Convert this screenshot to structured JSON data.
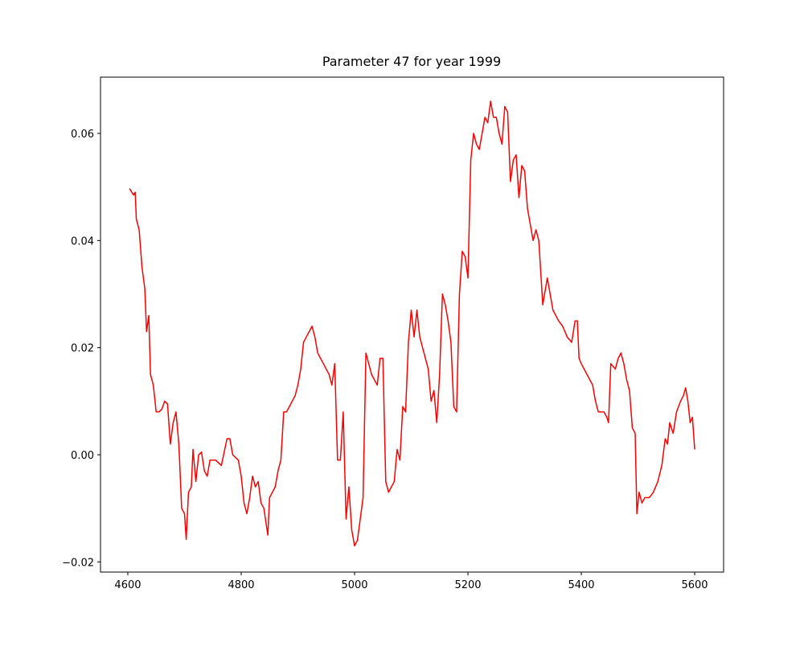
{
  "chart_data": {
    "type": "line",
    "title": "Parameter 47 for year 1999",
    "x": [
      4603,
      4610,
      4613,
      4615,
      4620,
      4625,
      4630,
      4633,
      4637,
      4640,
      4645,
      4650,
      4655,
      4660,
      4665,
      4670,
      4675,
      4680,
      4685,
      4690,
      4695,
      4700,
      4703,
      4707,
      4712,
      4715,
      4720,
      4725,
      4730,
      4735,
      4740,
      4745,
      4755,
      4765,
      4775,
      4780,
      4785,
      4795,
      4800,
      4805,
      4810,
      4815,
      4820,
      4825,
      4830,
      4835,
      4840,
      4847,
      4850,
      4855,
      4860,
      4865,
      4870,
      4875,
      4880,
      4885,
      4890,
      4895,
      4900,
      4905,
      4910,
      4915,
      4920,
      4925,
      4930,
      4935,
      4940,
      4945,
      4950,
      4955,
      4960,
      4965,
      4970,
      4975,
      4980,
      4985,
      4990,
      4995,
      5000,
      5005,
      5010,
      5015,
      5020,
      5025,
      5030,
      5035,
      5040,
      5045,
      5050,
      5055,
      5060,
      5065,
      5070,
      5075,
      5080,
      5085,
      5090,
      5095,
      5100,
      5105,
      5110,
      5115,
      5120,
      5125,
      5130,
      5135,
      5140,
      5145,
      5150,
      5155,
      5160,
      5165,
      5170,
      5175,
      5180,
      5185,
      5190,
      5195,
      5200,
      5205,
      5210,
      5215,
      5220,
      5225,
      5230,
      5235,
      5240,
      5245,
      5250,
      5255,
      5260,
      5265,
      5270,
      5275,
      5280,
      5285,
      5290,
      5295,
      5300,
      5305,
      5310,
      5315,
      5320,
      5325,
      5332,
      5340,
      5350,
      5360,
      5367,
      5375,
      5383,
      5389,
      5393,
      5396,
      5400,
      5410,
      5420,
      5425,
      5430,
      5440,
      5445,
      5448,
      5452,
      5460,
      5465,
      5470,
      5475,
      5480,
      5485,
      5490,
      5495,
      5498,
      5502,
      5507,
      5512,
      5520,
      5527,
      5535,
      5542,
      5548,
      5552,
      5556,
      5562,
      5568,
      5575,
      5580,
      5584,
      5588,
      5592,
      5596,
      5600
    ],
    "series": [
      {
        "color": "#ff0000",
        "values": [
          0.0497,
          0.0485,
          0.049,
          0.044,
          0.042,
          0.035,
          0.031,
          0.023,
          0.026,
          0.015,
          0.013,
          0.008,
          0.008,
          0.0085,
          0.01,
          0.0095,
          0.002,
          0.006,
          0.008,
          0.002,
          -0.01,
          -0.011,
          -0.0158,
          -0.007,
          -0.006,
          0.001,
          -0.005,
          0.0,
          0.0005,
          -0.003,
          -0.004,
          -0.001,
          -0.001,
          -0.002,
          0.003,
          0.003,
          0.0,
          -0.001,
          -0.004,
          -0.009,
          -0.011,
          -0.008,
          -0.004,
          -0.006,
          -0.005,
          -0.009,
          -0.01,
          -0.015,
          -0.008,
          -0.007,
          -0.006,
          -0.003,
          -0.001,
          0.008,
          0.008,
          0.009,
          0.01,
          0.011,
          0.013,
          0.016,
          0.021,
          0.022,
          0.023,
          0.024,
          0.022,
          0.019,
          0.018,
          0.017,
          0.016,
          0.015,
          0.013,
          0.017,
          -0.001,
          -0.001,
          0.008,
          -0.012,
          -0.006,
          -0.014,
          -0.017,
          -0.016,
          -0.012,
          -0.008,
          0.019,
          0.017,
          0.015,
          0.014,
          0.013,
          0.018,
          0.018,
          -0.005,
          -0.007,
          -0.006,
          -0.005,
          0.001,
          -0.001,
          0.009,
          0.008,
          0.021,
          0.027,
          0.022,
          0.027,
          0.022,
          0.02,
          0.018,
          0.016,
          0.01,
          0.012,
          0.006,
          0.015,
          0.03,
          0.028,
          0.025,
          0.021,
          0.009,
          0.008,
          0.03,
          0.038,
          0.037,
          0.033,
          0.055,
          0.06,
          0.058,
          0.057,
          0.06,
          0.063,
          0.062,
          0.066,
          0.063,
          0.063,
          0.06,
          0.058,
          0.065,
          0.064,
          0.051,
          0.055,
          0.056,
          0.048,
          0.054,
          0.053,
          0.046,
          0.043,
          0.04,
          0.042,
          0.04,
          0.028,
          0.033,
          0.027,
          0.025,
          0.024,
          0.022,
          0.021,
          0.025,
          0.025,
          0.018,
          0.017,
          0.015,
          0.013,
          0.01,
          0.008,
          0.008,
          0.007,
          0.006,
          0.017,
          0.016,
          0.018,
          0.019,
          0.017,
          0.014,
          0.012,
          0.005,
          0.004,
          -0.011,
          -0.007,
          -0.009,
          -0.008,
          -0.008,
          -0.007,
          -0.005,
          -0.002,
          0.003,
          0.002,
          0.006,
          0.004,
          0.008,
          0.01,
          0.011,
          0.0125,
          0.01,
          0.006,
          0.007,
          0.001
        ]
      }
    ],
    "xlim": [
      4551.8,
      5651
    ],
    "ylim": [
      -0.0219,
      0.0705
    ],
    "xticks": [
      4600,
      4800,
      5000,
      5200,
      5400,
      5600
    ],
    "yticks": [
      {
        "value": -0.02,
        "label": "−0.02"
      },
      {
        "value": 0,
        "label": "0.00"
      },
      0.02,
      0.04,
      0.06
    ],
    "grid": false
  }
}
